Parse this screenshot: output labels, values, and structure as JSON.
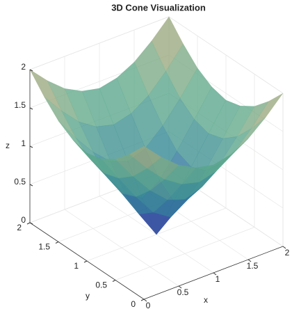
{
  "chart_data": {
    "type": "surface",
    "title": "3D Cone Visualization",
    "x_label": "x",
    "y_label": "y",
    "z_label": "z",
    "x": [
      0,
      0.25,
      0.5,
      0.75,
      1,
      1.25,
      1.5,
      1.75,
      2
    ],
    "y": [
      0,
      0.25,
      0.5,
      0.75,
      1,
      1.25,
      1.5,
      1.75,
      2
    ],
    "z": [
      [
        2,
        1.77,
        1.58,
        1.46,
        1.41,
        1.46,
        1.58,
        1.77,
        2
      ],
      [
        1.77,
        1.5,
        1.27,
        1.12,
        1.06,
        1.12,
        1.27,
        1.5,
        1.77
      ],
      [
        1.58,
        1.27,
        1,
        0.79,
        0.71,
        0.79,
        1,
        1.27,
        1.58
      ],
      [
        1.46,
        1.12,
        0.79,
        0.5,
        0.35,
        0.5,
        0.79,
        1.12,
        1.46
      ],
      [
        1.41,
        1.06,
        0.71,
        0.35,
        0,
        0.35,
        0.71,
        1.06,
        1.41
      ],
      [
        1.46,
        1.12,
        0.79,
        0.5,
        0.35,
        0.5,
        0.79,
        1.12,
        1.46
      ],
      [
        1.58,
        1.27,
        1,
        0.79,
        0.71,
        0.79,
        1,
        1.27,
        1.58
      ],
      [
        1.77,
        1.5,
        1.27,
        1.12,
        1.06,
        1.12,
        1.27,
        1.5,
        1.77
      ],
      [
        2,
        1.77,
        1.58,
        1.46,
        1.41,
        1.46,
        1.58,
        1.77,
        2
      ]
    ],
    "colormap": [
      "#3e26a8",
      "#2a7f96",
      "#5fa98a",
      "#b9a877"
    ],
    "xlim": [
      0,
      2
    ],
    "ylim": [
      0,
      2
    ],
    "zlim": [
      0,
      2
    ],
    "xticks": [
      0,
      0.5,
      1,
      1.5,
      2
    ],
    "yticks": [
      0,
      0.5,
      1,
      1.5,
      2
    ],
    "zticks": [
      0,
      0.5,
      1,
      1.5,
      2
    ],
    "grid": true
  }
}
